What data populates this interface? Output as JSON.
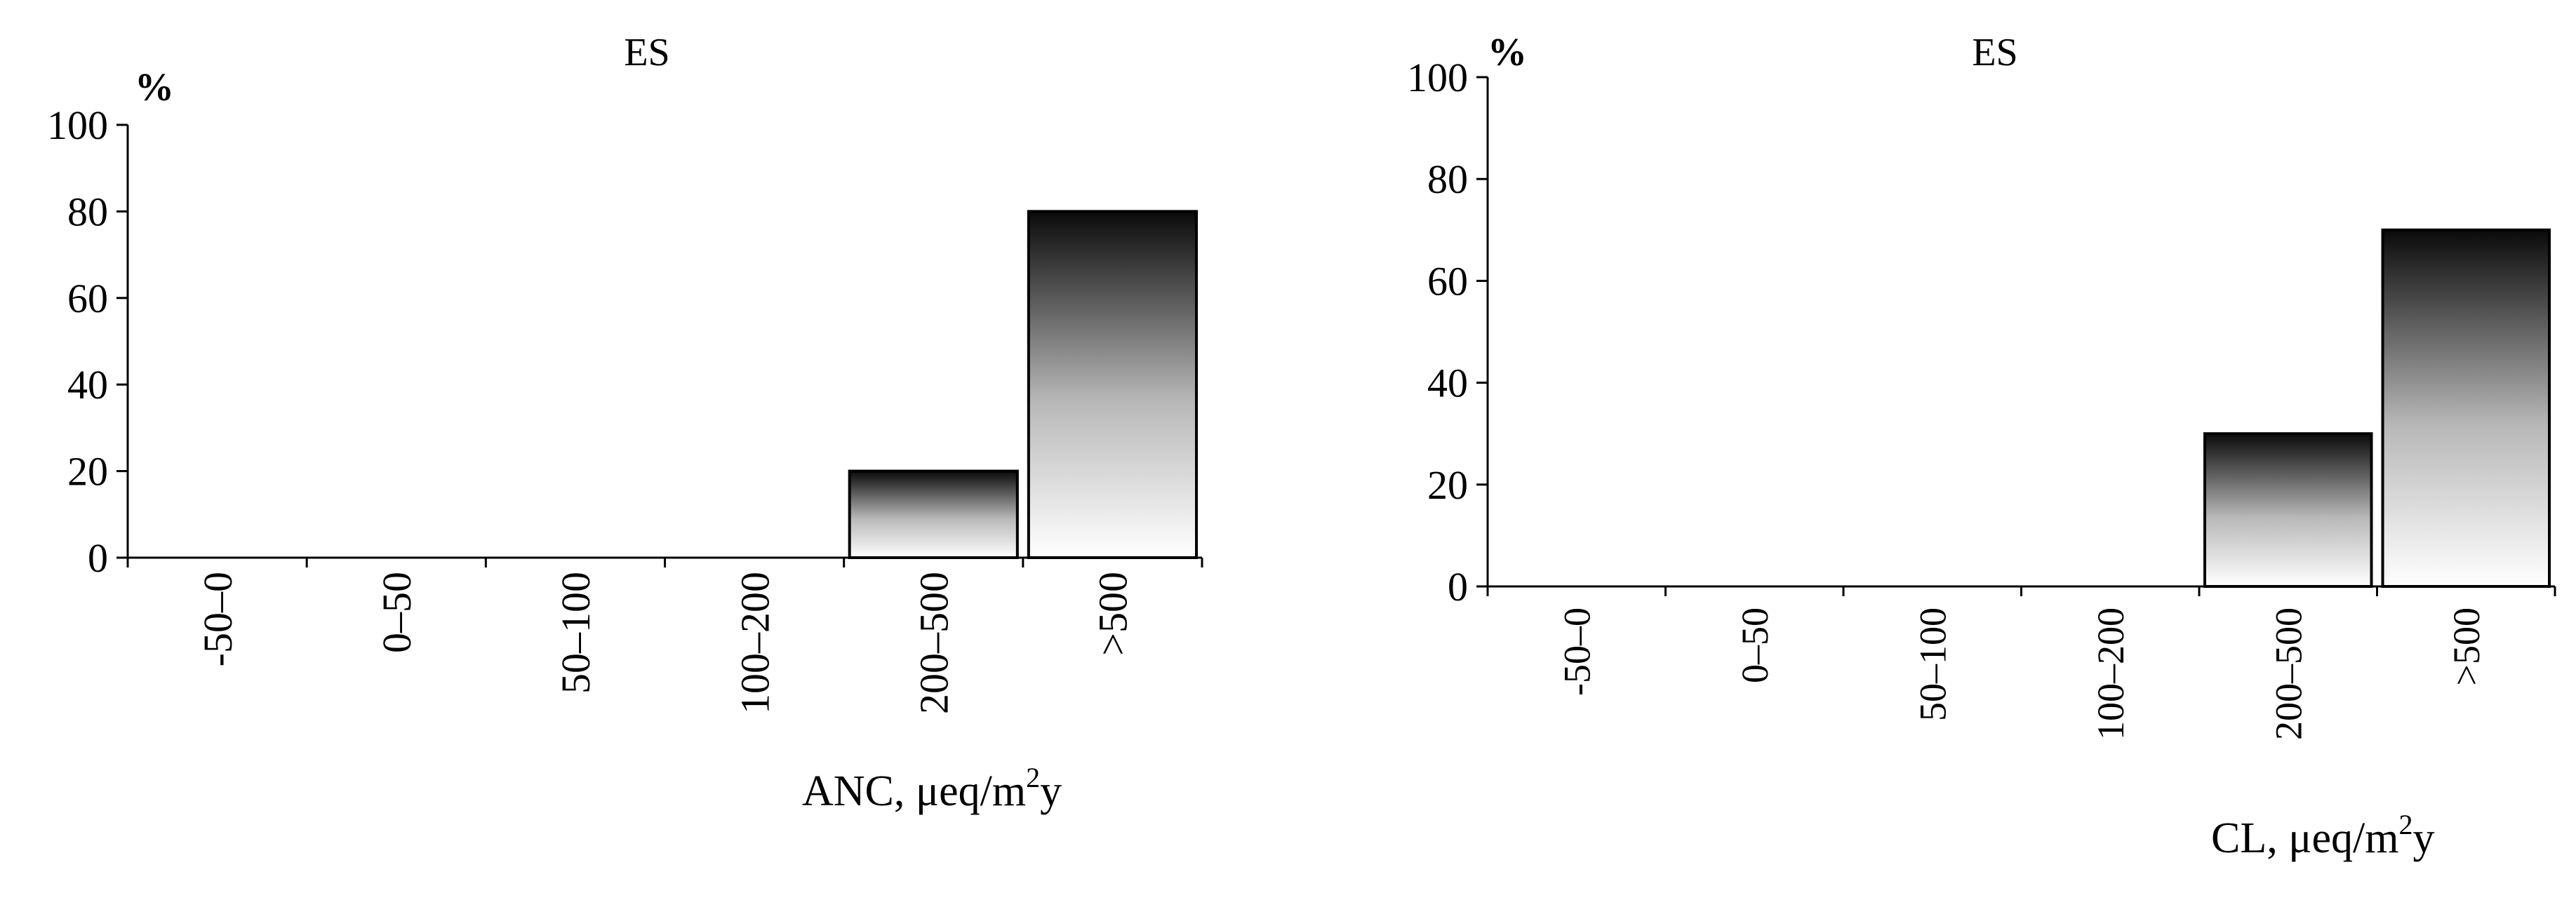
{
  "chart_data": [
    {
      "type": "bar",
      "title": "ES",
      "ylabel": "%",
      "xlabel": "ANC, μeq/m²y",
      "xlabel_main": "ANC, μeq/m",
      "xlabel_sup": "2",
      "xlabel_tail": "y",
      "categories": [
        "-50–0",
        "0–50",
        "50–100",
        "100–200",
        "200–500",
        ">500"
      ],
      "values": [
        0,
        0,
        0,
        0,
        20,
        80
      ],
      "ylim": [
        0,
        100
      ],
      "yticks": [
        "0",
        "20",
        "40",
        "60",
        "80",
        "100"
      ],
      "grid": false,
      "legend": "none",
      "bar_fill": "gradient black-to-white (top to bottom)"
    },
    {
      "type": "bar",
      "title": "ES",
      "ylabel": "%",
      "xlabel": "CL, μeq/m²y",
      "xlabel_main": "CL, μeq/m",
      "xlabel_sup": "2",
      "xlabel_tail": "y",
      "categories": [
        "-50–0",
        "0–50",
        "50–100",
        "100–200",
        "200–500",
        ">500"
      ],
      "values": [
        0,
        0,
        0,
        0,
        30,
        70
      ],
      "ylim": [
        0,
        100
      ],
      "yticks": [
        "0",
        "20",
        "40",
        "60",
        "80",
        "100"
      ],
      "grid": false,
      "legend": "none",
      "bar_fill": "gradient black-to-white (top to bottom)"
    }
  ],
  "colors": {
    "axis": "#000000",
    "bar_top": "#0a0a0a",
    "bar_bottom": "#ffffff"
  }
}
